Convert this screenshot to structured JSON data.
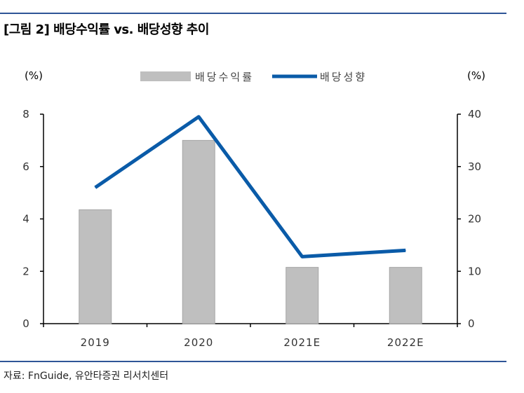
{
  "figure": {
    "title": "[그림 2] 배당수익률 vs. 배당성향 추이",
    "source": "자료: FnGuide, 유안타증권 리서치센터"
  },
  "colors": {
    "rule": "#2e5597",
    "bar": "#bfbfbf",
    "bar_stroke": "#a6a6a6",
    "line": "#0a5ba8",
    "axis": "#000000"
  },
  "chart_data": {
    "type": "bar",
    "categories": [
      "2019",
      "2020",
      "2021E",
      "2022E"
    ],
    "series": [
      {
        "name": "배당수익률",
        "type": "bar",
        "axis": "left",
        "values": [
          4.35,
          7.0,
          2.15,
          2.15
        ]
      },
      {
        "name": "배당성향",
        "type": "line",
        "axis": "right",
        "values": [
          26.0,
          39.5,
          12.8,
          14.0
        ]
      }
    ],
    "y_left": {
      "label": "(%)",
      "ylim": [
        0,
        8
      ],
      "ticks": [
        0,
        2,
        4,
        6,
        8
      ]
    },
    "y_right": {
      "label": "(%)",
      "ylim": [
        0,
        40
      ],
      "ticks": [
        0,
        10,
        20,
        30,
        40
      ]
    },
    "legend": "top-center",
    "grid": false
  }
}
